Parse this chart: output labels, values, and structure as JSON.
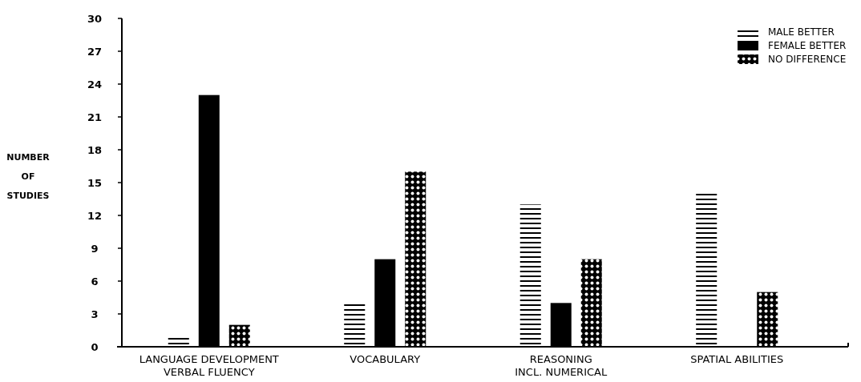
{
  "chart_data": {
    "type": "bar",
    "ylabel": "NUMBER\nOF\nSTUDIES",
    "categories": [
      "LANGUAGE DEVELOPMENT\nVERBAL FLUENCY",
      "VOCABULARY",
      "REASONING\nINCL. NUMERICAL",
      "SPATIAL ABILITIES"
    ],
    "series": [
      {
        "name": "MALE BETTER",
        "color": "#000000",
        "values": [
          1,
          4,
          13,
          14
        ]
      },
      {
        "name": "FEMALE BETTER",
        "color": "#000000",
        "values": [
          23,
          8,
          4,
          0
        ]
      },
      {
        "name": "NO DIFFERENCE",
        "color": "#000000",
        "values": [
          2,
          16,
          8,
          5
        ]
      }
    ],
    "ylim": [
      0,
      30
    ],
    "yticks": [
      0,
      3,
      6,
      9,
      12,
      15,
      18,
      21,
      24,
      27,
      30
    ],
    "legend": "top right"
  }
}
